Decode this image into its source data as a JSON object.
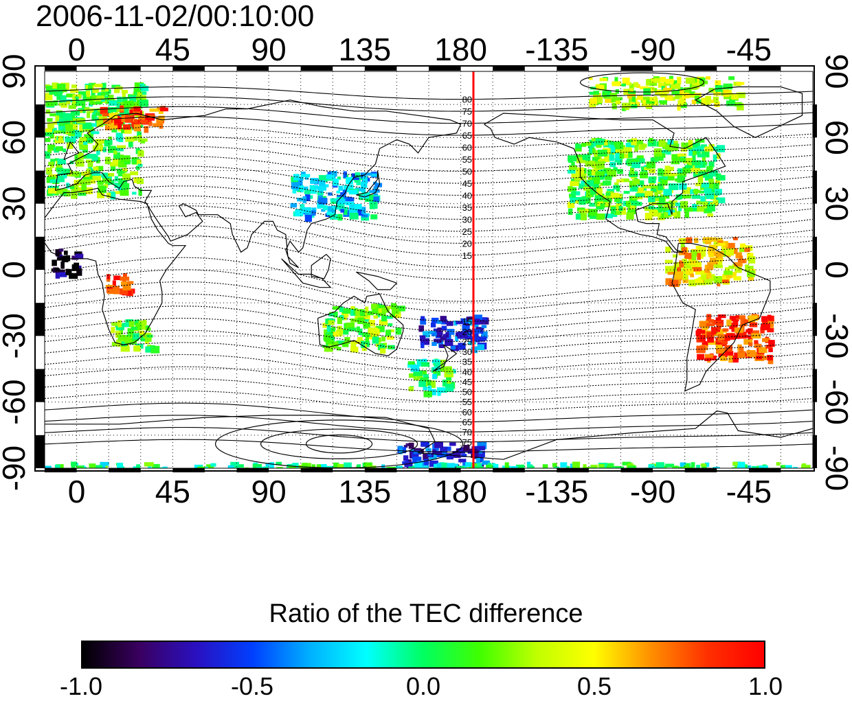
{
  "title": "2006-11-02/00:10:00",
  "map": {
    "projection": "equirectangular",
    "central_longitude": 180,
    "lon_labels": [
      "0",
      "45",
      "90",
      "135",
      "180",
      "-135",
      "-90",
      "-45"
    ],
    "lat_labels": [
      "90",
      "60",
      "30",
      "0",
      "-30",
      "-60",
      "-90"
    ],
    "meridian_line_color": "#ff0000",
    "meridian_line_lon": 180,
    "contour_labels_north": [
      "80",
      "75",
      "70",
      "65",
      "60",
      "55",
      "50",
      "45",
      "40",
      "35",
      "30",
      "25",
      "20",
      "15"
    ],
    "contour_labels_south": [
      "15",
      "20",
      "25",
      "30",
      "35",
      "40",
      "45",
      "50",
      "55",
      "60",
      "65",
      "70",
      "75"
    ],
    "grid": true,
    "grid_style": "dotted",
    "coastlines": true,
    "contours": "dip latitude isolines"
  },
  "colorbar": {
    "title": "Ratio of the TEC difference",
    "min": -1.0,
    "max": 1.0,
    "tick_labels": [
      "-1.0",
      "-0.5",
      "0.0",
      "0.5",
      "1.0"
    ],
    "tick_values": [
      -1.0,
      -0.5,
      0.0,
      0.5,
      1.0
    ],
    "colormap": [
      "#000000",
      "#3a0060",
      "#2a10c0",
      "#0040ff",
      "#00b0ff",
      "#00ffff",
      "#00ff60",
      "#40ff00",
      "#c0ff00",
      "#ffff00",
      "#ff9000",
      "#ff3000",
      "#ff0000"
    ]
  },
  "chart_data": {
    "type": "heatmap",
    "title": "2006-11-02/00:10:00",
    "xlabel": "",
    "ylabel": "",
    "xlim": [
      -15,
      345
    ],
    "ylim": [
      -90,
      90
    ],
    "value_range": [
      -1.0,
      1.0
    ],
    "regions": [
      {
        "lon": [
          -15,
          30
        ],
        "lat": [
          35,
          85
        ],
        "value": 0.15
      },
      {
        "lon": [
          10,
          40
        ],
        "lat": [
          65,
          75
        ],
        "value": 0.8
      },
      {
        "lon": [
          -12,
          0
        ],
        "lat": [
          -2,
          10
        ],
        "value": -0.9
      },
      {
        "lon": [
          12,
          25
        ],
        "lat": [
          -10,
          0
        ],
        "value": 0.9
      },
      {
        "lon": [
          15,
          35
        ],
        "lat": [
          -35,
          -22
        ],
        "value": 0.2
      },
      {
        "lon": [
          100,
          140
        ],
        "lat": [
          25,
          45
        ],
        "value": -0.25
      },
      {
        "lon": [
          115,
          150
        ],
        "lat": [
          -35,
          -15
        ],
        "value": 0.2
      },
      {
        "lon": [
          160,
          190
        ],
        "lat": [
          -35,
          -20
        ],
        "value": -0.55
      },
      {
        "lon": [
          155,
          175
        ],
        "lat": [
          -55,
          -40
        ],
        "value": 0.05
      },
      {
        "lon": [
          230,
          300
        ],
        "lat": [
          25,
          60
        ],
        "value": 0.15
      },
      {
        "lon": [
          290,
          325
        ],
        "lat": [
          -40,
          -20
        ],
        "value": 0.85
      },
      {
        "lon": [
          275,
          315
        ],
        "lat": [
          -5,
          15
        ],
        "value": 0.5
      },
      {
        "lon": [
          150,
          190
        ],
        "lat": [
          -90,
          -78
        ],
        "value": -0.6
      },
      {
        "lon": [
          240,
          310
        ],
        "lat": [
          75,
          88
        ],
        "value": 0.3
      },
      {
        "lon": [
          -15,
          340
        ],
        "lat": [
          -90,
          -87
        ],
        "value": 0.0
      }
    ]
  }
}
